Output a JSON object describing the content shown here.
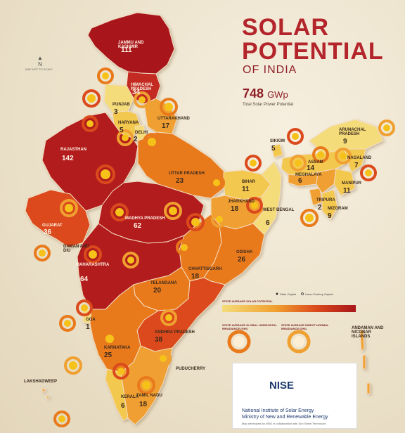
{
  "title": {
    "line1": "SOLAR",
    "line2": "POTENTIAL",
    "line3": "OF INDIA"
  },
  "total": {
    "value": "748",
    "unit": "GWp",
    "label": "Total Solar Power Potential"
  },
  "north_label": "N",
  "scale_note": "MAP NOT TO SCALE",
  "states": [
    {
      "name": "JAMMU AND KASHMIR",
      "value": "111",
      "light": true
    },
    {
      "name": "HIMACHAL PRADESH",
      "value": "34",
      "light": true
    },
    {
      "name": "PUNJAB",
      "value": "3",
      "light": false
    },
    {
      "name": "HARYANA",
      "value": "5",
      "light": false
    },
    {
      "name": "UTTARAKHAND",
      "value": "17",
      "light": false
    },
    {
      "name": "DELHI",
      "value": "2",
      "light": false
    },
    {
      "name": "RAJASTHAN",
      "value": "142",
      "light": true
    },
    {
      "name": "UTTAR PRADESH",
      "value": "23",
      "light": false
    },
    {
      "name": "GUJARAT",
      "value": "36",
      "light": true
    },
    {
      "name": "MADHYA PRADESH",
      "value": "62",
      "light": true
    },
    {
      "name": "BIHAR",
      "value": "11",
      "light": false
    },
    {
      "name": "JHARKHAND",
      "value": "18",
      "light": false
    },
    {
      "name": "WEST BENGAL",
      "value": "6",
      "light": false
    },
    {
      "name": "SIKKIM",
      "value": "5",
      "light": false
    },
    {
      "name": "ARUNACHAL PRADESH",
      "value": "9",
      "light": false
    },
    {
      "name": "ASSAM",
      "value": "14",
      "light": false
    },
    {
      "name": "NAGALAND",
      "value": "7",
      "light": false
    },
    {
      "name": "MEGHALAYA",
      "value": "6",
      "light": false
    },
    {
      "name": "MANIPUR",
      "value": "11",
      "light": false
    },
    {
      "name": "TRIPURA",
      "value": "2",
      "light": false
    },
    {
      "name": "MIZORAM",
      "value": "9",
      "light": false
    },
    {
      "name": "ODISHA",
      "value": "26",
      "light": false
    },
    {
      "name": "CHHATTISGARH",
      "value": "18",
      "light": false
    },
    {
      "name": "MAHARASHTRA",
      "value": "64",
      "light": true
    },
    {
      "name": "TELANGANA",
      "value": "20",
      "light": false
    },
    {
      "name": "ANDHRA PRADESH",
      "value": "38",
      "light": false
    },
    {
      "name": "KARNATAKA",
      "value": "25",
      "light": false
    },
    {
      "name": "GOA",
      "value": "1",
      "light": false
    },
    {
      "name": "KERALA",
      "value": "6",
      "light": false
    },
    {
      "name": "TAMIL NADU",
      "value": "18",
      "light": false
    },
    {
      "name": "PUDUCHERRY",
      "value": "",
      "light": false
    },
    {
      "name": "DAMAN AND DIU",
      "value": "",
      "light": false
    },
    {
      "name": "LAKSHADWEEP",
      "value": "",
      "light": false
    },
    {
      "name": "ANDAMAN AND NICOBAR ISLANDS",
      "value": "",
      "light": false
    }
  ],
  "legend": {
    "state_capital": "State Capital",
    "ut_capital": "Union Territory Capital",
    "bar_title": "STATE AVERAGE SOLAR POTENTIAL",
    "ghi_title": "STATE AVERAGE GLOBAL HORIZONTAL IRRADIANCE (GHI)",
    "dni_title": "STATE AVERAGE DIRECT NORMAL IRRADIANCE (DNI)"
  },
  "colors": {
    "deep_red": "#a8161c",
    "red": "#c22a22",
    "orange_red": "#db4a1c",
    "orange": "#e97a1c",
    "light_orange": "#f0a030",
    "yellow": "#f3c850",
    "pale_yellow": "#f5dc7a",
    "title_red": "#b3242b"
  },
  "footer": {
    "logo": "NISE",
    "line1": "National Institute of Solar Energy",
    "line2": "Ministry of New and Renewable Energy",
    "credit": "Map developed by NISE in collaboration with Sun Shine Technocon"
  }
}
